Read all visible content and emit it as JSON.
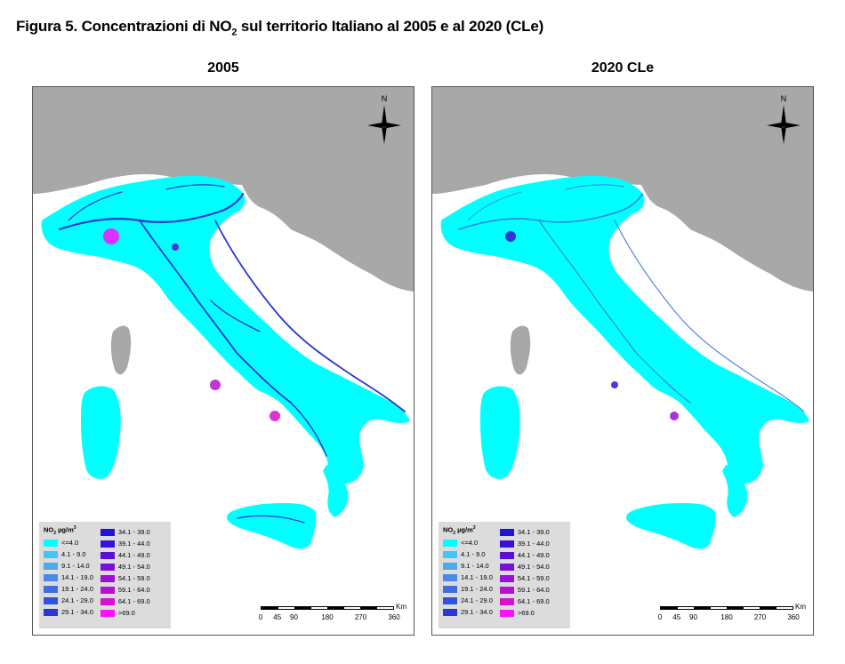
{
  "figure": {
    "title_prefix": "Figura 5. Concentrazioni di NO",
    "title_sub": "2",
    "title_suffix": " sul territorio Italiano al 2005 e al 2020 (CLe)"
  },
  "panels": [
    {
      "title": "2005",
      "scenario": "2005"
    },
    {
      "title": "2020 CLe",
      "scenario": "2020"
    }
  ],
  "legend": {
    "title_main": "NO",
    "title_sub": "2",
    "title_unit": " µg/m",
    "title_sup": "3",
    "col1": [
      {
        "label": "<=4.0",
        "color": "#00ffff"
      },
      {
        "label": "4.1 - 9.0",
        "color": "#3fc7f5"
      },
      {
        "label": "9.1 - 14.0",
        "color": "#4fa8ee"
      },
      {
        "label": "14.1 - 19.0",
        "color": "#4a8ae6"
      },
      {
        "label": "19.1 - 24.0",
        "color": "#3f6ee0"
      },
      {
        "label": "24.1 - 29.0",
        "color": "#3451dc"
      },
      {
        "label": "29.1 - 34.0",
        "color": "#2a36d8"
      }
    ],
    "col2": [
      {
        "label": "34.1 - 39.0",
        "color": "#1f14d8"
      },
      {
        "label": "39.1 - 44.0",
        "color": "#3a10d8"
      },
      {
        "label": "44.1 - 49.0",
        "color": "#5a10d8"
      },
      {
        "label": "49.1 - 54.0",
        "color": "#7a10d6"
      },
      {
        "label": "54.1 - 59.0",
        "color": "#9a10d4"
      },
      {
        "label": "59.1 - 64.0",
        "color": "#b810d2"
      },
      {
        "label": "64.1 - 69.0",
        "color": "#d810d0"
      },
      {
        "label": ">69.0",
        "color": "#ff10ff"
      }
    ]
  },
  "north_label": "N",
  "scale": {
    "ticks": [
      "0",
      "45",
      "90",
      "180",
      "270",
      "360"
    ],
    "unit": "Km"
  },
  "colors": {
    "land_base": "#00ffff",
    "neighbour_land": "#a8a8a8",
    "sea": "#ffffff",
    "road_network": "#2a36d8",
    "hotspot": "#ff10ff"
  }
}
